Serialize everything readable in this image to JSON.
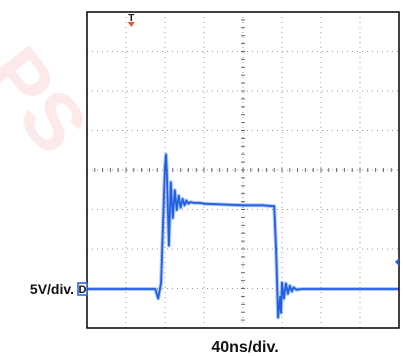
{
  "chart_data": {
    "type": "line",
    "title": "",
    "xlabel": "40ns/div.",
    "ylabel": "5V/div.",
    "grid": true,
    "divisions": {
      "x": 8,
      "y": 8
    },
    "xlim": [
      0,
      320
    ],
    "x_unit": "ns",
    "y_unit": "V",
    "trigger_marker": "T",
    "channel_marker": "D",
    "colors": {
      "trace": "#1f5fe0",
      "trigger": "#e8552a",
      "grid": "#9a9a9a",
      "frame": "#000000",
      "watermark": "#e02020"
    },
    "series": [
      {
        "x": [
          0,
          70,
          73,
          76,
          78,
          80,
          81,
          82,
          84,
          86,
          88,
          90,
          92,
          94,
          96,
          98,
          100,
          102,
          104,
          106,
          110,
          116,
          120,
          140,
          160,
          180,
          190,
          192,
          194,
          196,
          198,
          199,
          200,
          202,
          204,
          206,
          208,
          210,
          212,
          215,
          220,
          240,
          260,
          280,
          300,
          320
        ],
        "y": [
          0,
          0,
          -1.2,
          0.8,
          8.5,
          15.5,
          17.0,
          14.5,
          5.5,
          13.5,
          9.0,
          12.5,
          10.0,
          11.8,
          10.3,
          11.4,
          10.6,
          11.2,
          10.8,
          11.0,
          10.9,
          10.9,
          10.8,
          10.7,
          10.6,
          10.6,
          10.5,
          10.5,
          5.0,
          -3.6,
          -1.0,
          -3.0,
          0.8,
          -1.2,
          0.7,
          -0.6,
          0.4,
          -0.3,
          0.2,
          -0.1,
          0,
          0,
          0,
          0,
          0,
          0
        ]
      }
    ]
  }
}
